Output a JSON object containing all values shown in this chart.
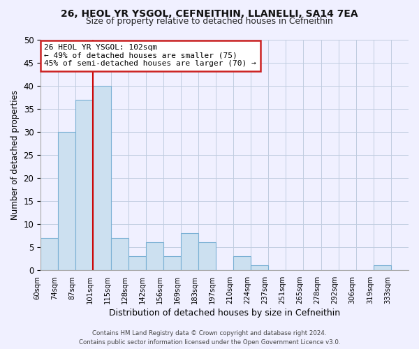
{
  "title": "26, HEOL YR YSGOL, CEFNEITHIN, LLANELLI, SA14 7EA",
  "subtitle": "Size of property relative to detached houses in Cefneithin",
  "xlabel": "Distribution of detached houses by size in Cefneithin",
  "ylabel": "Number of detached properties",
  "bin_labels": [
    "60sqm",
    "74sqm",
    "87sqm",
    "101sqm",
    "115sqm",
    "128sqm",
    "142sqm",
    "156sqm",
    "169sqm",
    "183sqm",
    "197sqm",
    "210sqm",
    "224sqm",
    "237sqm",
    "251sqm",
    "265sqm",
    "278sqm",
    "292sqm",
    "306sqm",
    "319sqm",
    "333sqm"
  ],
  "bar_heights": [
    7,
    30,
    37,
    40,
    7,
    3,
    6,
    3,
    8,
    6,
    0,
    3,
    1,
    0,
    0,
    0,
    0,
    0,
    0,
    1,
    0
  ],
  "bar_color": "#cce0f0",
  "bar_edge_color": "#7ab0d4",
  "vline_x": 3,
  "vline_color": "#cc0000",
  "ylim": [
    0,
    50
  ],
  "yticks": [
    0,
    5,
    10,
    15,
    20,
    25,
    30,
    35,
    40,
    45,
    50
  ],
  "annotation_title": "26 HEOL YR YSGOL: 102sqm",
  "annotation_line1": "← 49% of detached houses are smaller (75)",
  "annotation_line2": "45% of semi-detached houses are larger (70) →",
  "footer_line1": "Contains HM Land Registry data © Crown copyright and database right 2024.",
  "footer_line2": "Contains public sector information licensed under the Open Government Licence v3.0.",
  "bg_color": "#f0f0ff",
  "grid_color": "#c0cce0"
}
